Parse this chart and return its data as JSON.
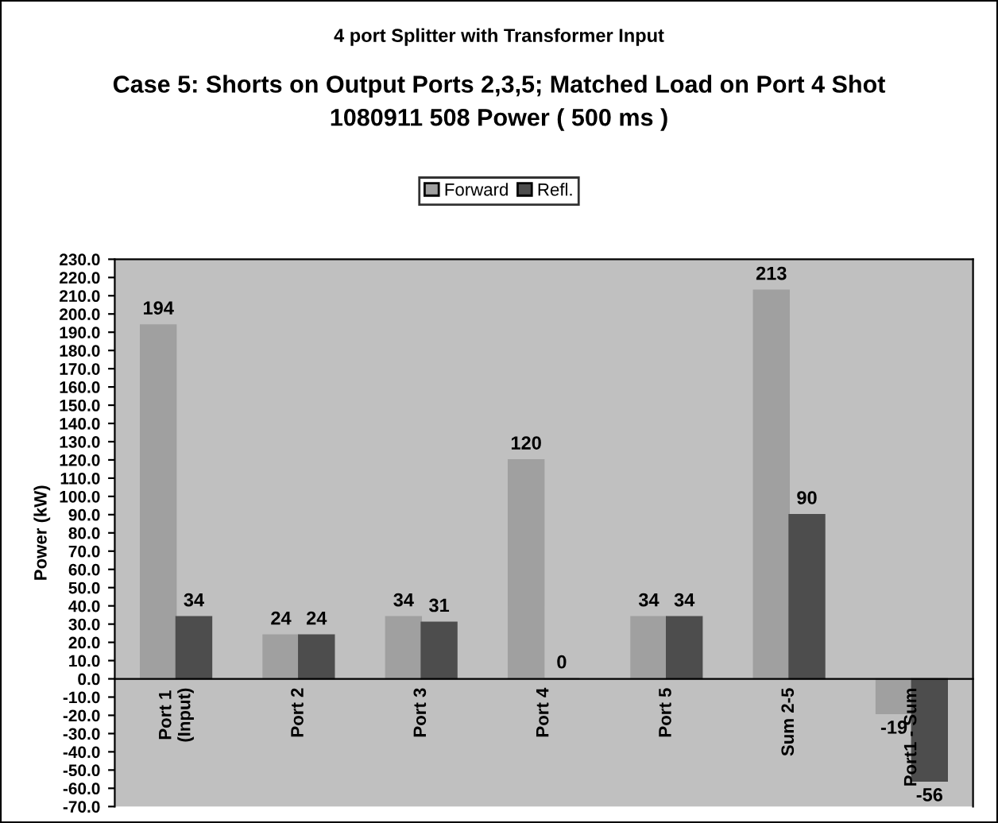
{
  "chart_data": {
    "type": "bar",
    "title": "4 port Splitter with Transformer Input",
    "subtitle": "Case 5: Shorts on Output Ports 2,3,5; Matched Load on Port 4 Shot\n1080911 508 Power ( 500 ms )",
    "ylabel": "Power (kW)",
    "categories": [
      "Port 1\n(Input)",
      "Port 2",
      "Port 3",
      "Port 4",
      "Port 5",
      "Sum 2-5",
      "Port1 - Sum"
    ],
    "series": [
      {
        "name": "Forward",
        "color": "#a0a0a0",
        "values": [
          194,
          24,
          34,
          120,
          34,
          213,
          -19
        ]
      },
      {
        "name": "Refl.",
        "color": "#4d4d4d",
        "values": [
          34,
          24,
          31,
          0,
          34,
          90,
          -56
        ]
      }
    ],
    "ylim": [
      -70,
      230
    ],
    "yticks": [
      {
        "value": -70,
        "label": "-70.0"
      },
      {
        "value": -60,
        "label": "-60.0"
      },
      {
        "value": -50,
        "label": "-50.0"
      },
      {
        "value": -40,
        "label": "-40.0"
      },
      {
        "value": -30,
        "label": "-30.0"
      },
      {
        "value": -20,
        "label": "-20.0"
      },
      {
        "value": -10,
        "label": "-10.0"
      },
      {
        "value": 0,
        "label": "0.0"
      },
      {
        "value": 10,
        "label": "10.0"
      },
      {
        "value": 20,
        "label": "20.0"
      },
      {
        "value": 30,
        "label": "30.0"
      },
      {
        "value": 40,
        "label": "40.0"
      },
      {
        "value": 50,
        "label": "50.0"
      },
      {
        "value": 60,
        "label": "60.0"
      },
      {
        "value": 70,
        "label": "70.0"
      },
      {
        "value": 80,
        "label": "80.0"
      },
      {
        "value": 90,
        "label": "90.0"
      },
      {
        "value": 100,
        "label": "100.0"
      },
      {
        "value": 110,
        "label": "110.0"
      },
      {
        "value": 120,
        "label": "120.0"
      },
      {
        "value": 130,
        "label": "130.0"
      },
      {
        "value": 140,
        "label": "140.0"
      },
      {
        "value": 150,
        "label": "150.0"
      },
      {
        "value": 160,
        "label": "160.0"
      },
      {
        "value": 170,
        "label": "170.0"
      },
      {
        "value": 180,
        "label": "180.0"
      },
      {
        "value": 190,
        "label": "190.0"
      },
      {
        "value": 200,
        "label": "200.0"
      },
      {
        "value": 210,
        "label": "210.0"
      },
      {
        "value": 220,
        "label": "220.0"
      },
      {
        "value": 230,
        "label": "230.0"
      }
    ],
    "grid": false,
    "legend": "top",
    "data_labels": true
  }
}
